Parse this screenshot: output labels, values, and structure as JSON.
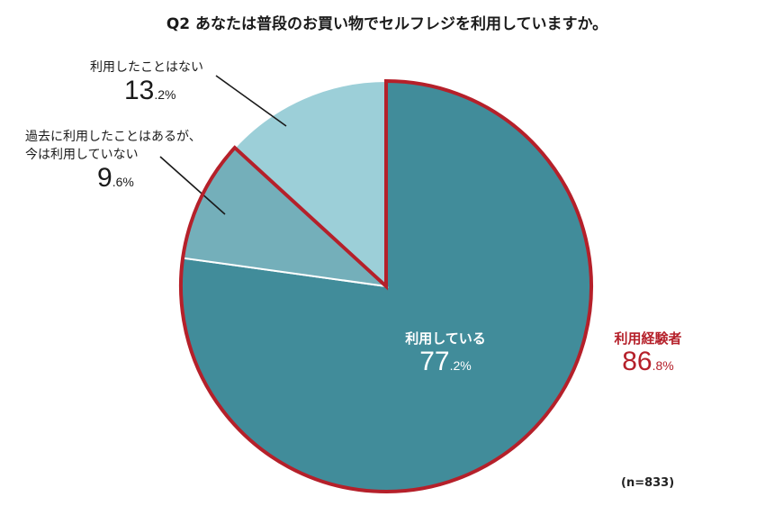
{
  "chart_data": {
    "type": "pie",
    "title": "Q2 あなたは普段のお買い物でセルフレジを利用していますか。",
    "unit": "%",
    "slices": [
      {
        "label": "利用している",
        "int": "77",
        "dec": ".2%",
        "value": 77.2,
        "color": "#418c9a"
      },
      {
        "label_lines": [
          "過去に利用したことはあるが、",
          "今は利用していない"
        ],
        "int": "9",
        "dec": ".6%",
        "value": 9.6,
        "color": "#74afba"
      },
      {
        "label": "利用したことはない",
        "int": "13",
        "dec": ".2%",
        "value": 13.2,
        "color": "#9ccfd8"
      }
    ],
    "group_highlight": {
      "label": "利用経験者",
      "int": "86",
      "dec": ".8%",
      "value": 86.8,
      "color": "#b5202a"
    },
    "sample_size": "(n=833)"
  }
}
